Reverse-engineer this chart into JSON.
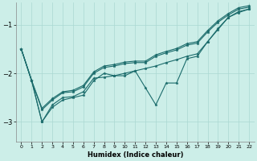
{
  "xlabel": "Humidex (Indice chaleur)",
  "bg_color": "#cceee8",
  "grid_color": "#aad8d2",
  "line_color": "#1a6b6b",
  "xlim": [
    -0.5,
    22.5
  ],
  "ylim": [
    -3.4,
    -0.55
  ],
  "yticks": [
    -3,
    -2,
    -1
  ],
  "xticks": [
    0,
    1,
    2,
    3,
    4,
    5,
    6,
    7,
    8,
    9,
    10,
    11,
    12,
    13,
    14,
    15,
    16,
    17,
    18,
    19,
    20,
    21,
    22
  ],
  "x": [
    0,
    1,
    2,
    3,
    4,
    5,
    6,
    7,
    8,
    9,
    10,
    11,
    12,
    13,
    14,
    15,
    16,
    17,
    18,
    19,
    20,
    21,
    22
  ],
  "series": [
    [
      -1.5,
      -2.15,
      -3.0,
      -2.7,
      -2.55,
      -2.5,
      -2.45,
      -2.15,
      -2.0,
      -2.05,
      -2.05,
      -1.95,
      -2.3,
      -2.65,
      -2.2,
      -2.2,
      -1.7,
      -1.65,
      -1.35,
      -1.1,
      -0.85,
      -0.75,
      -0.68
    ],
    [
      -1.5,
      -2.15,
      -2.75,
      -2.55,
      -2.4,
      -2.38,
      -2.28,
      -2.0,
      -1.88,
      -1.85,
      -1.8,
      -1.78,
      -1.78,
      -1.65,
      -1.58,
      -1.52,
      -1.42,
      -1.38,
      -1.15,
      -0.95,
      -0.8,
      -0.68,
      -0.64
    ],
    [
      -1.5,
      -2.15,
      -2.72,
      -2.52,
      -2.38,
      -2.35,
      -2.25,
      -1.97,
      -1.85,
      -1.82,
      -1.77,
      -1.75,
      -1.75,
      -1.62,
      -1.55,
      -1.49,
      -1.39,
      -1.35,
      -1.12,
      -0.92,
      -0.77,
      -0.65,
      -0.61
    ],
    [
      -1.5,
      -2.15,
      -3.0,
      -2.65,
      -2.5,
      -2.48,
      -2.38,
      -2.1,
      -2.08,
      -2.05,
      -2.0,
      -1.95,
      -1.9,
      -1.85,
      -1.78,
      -1.72,
      -1.65,
      -1.6,
      -1.35,
      -1.08,
      -0.85,
      -0.73,
      -0.68
    ]
  ]
}
